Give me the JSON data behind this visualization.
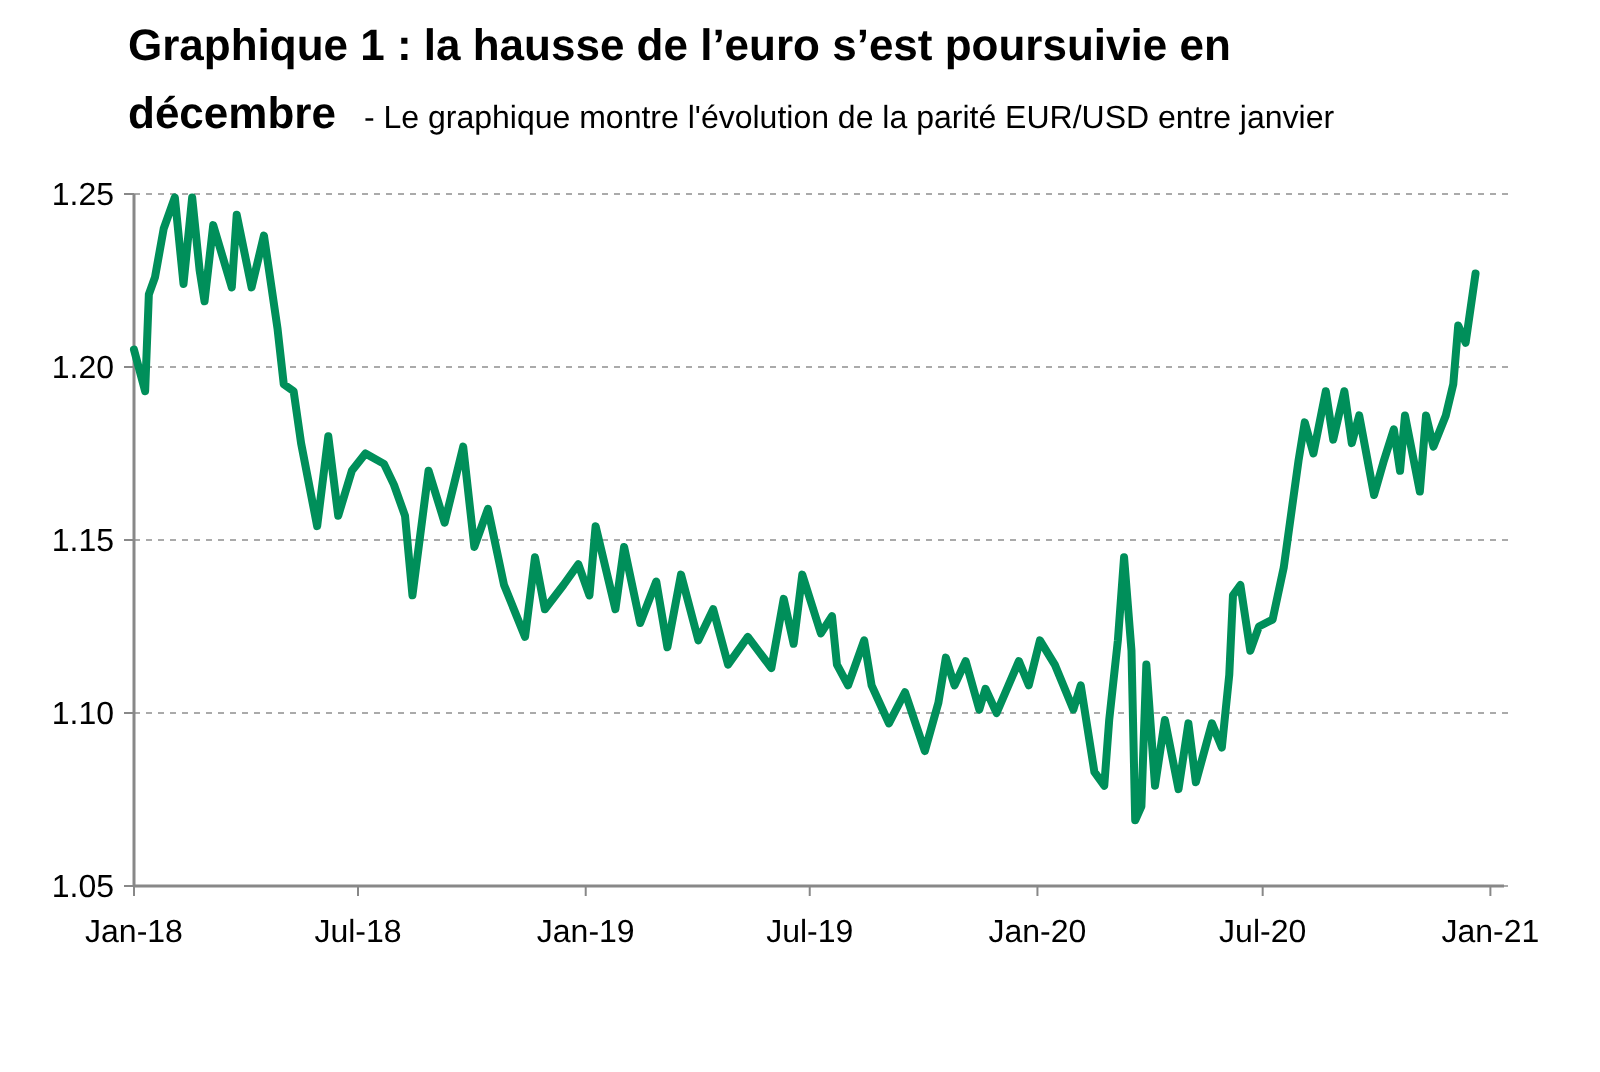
{
  "chart_data": {
    "type": "line",
    "title": "Graphique 1 : la hausse de l’euro s’est poursuivie en décembre",
    "subtitle": "- Le graphique montre l'évolution de la parité EUR/USD entre janvier",
    "x": [
      "2018-01-01",
      "2018-01-10",
      "2018-01-13",
      "2018-01-18",
      "2018-01-25",
      "2018-02-03",
      "2018-02-10",
      "2018-02-17",
      "2018-02-23",
      "2018-02-27",
      "2018-03-06",
      "2018-03-21",
      "2018-03-25",
      "2018-04-06",
      "2018-04-16",
      "2018-04-27",
      "2018-05-02",
      "2018-05-10",
      "2018-05-16",
      "2018-05-29",
      "2018-06-07",
      "2018-06-15",
      "2018-06-26",
      "2018-07-07",
      "2018-07-22",
      "2018-07-30",
      "2018-08-08",
      "2018-08-14",
      "2018-08-27",
      "2018-09-09",
      "2018-09-24",
      "2018-10-03",
      "2018-10-14",
      "2018-10-27",
      "2018-11-13",
      "2018-11-21",
      "2018-11-29",
      "2018-12-14",
      "2018-12-26",
      "2019-01-04",
      "2019-01-09",
      "2019-01-25",
      "2019-02-01",
      "2019-02-14",
      "2019-02-27",
      "2019-03-08",
      "2019-03-19",
      "2019-04-02",
      "2019-04-14",
      "2019-04-26",
      "2019-05-12",
      "2019-05-31",
      "2019-06-10",
      "2019-06-18",
      "2019-06-25",
      "2019-07-10",
      "2019-07-19",
      "2019-07-23",
      "2019-08-01",
      "2019-08-14",
      "2019-08-20",
      "2019-09-03",
      "2019-09-16",
      "2019-10-02",
      "2019-10-13",
      "2019-10-19",
      "2019-10-26",
      "2019-11-04",
      "2019-11-15",
      "2019-11-20",
      "2019-11-29",
      "2019-12-17",
      "2019-12-25",
      "2020-01-03",
      "2020-01-15",
      "2020-01-30",
      "2020-02-05",
      "2020-02-16",
      "2020-02-24",
      "2020-02-28",
      "2020-03-06",
      "2020-03-11",
      "2020-03-17",
      "2020-03-20",
      "2020-03-25",
      "2020-03-29",
      "2020-04-05",
      "2020-04-13",
      "2020-04-24",
      "2020-05-02",
      "2020-05-08",
      "2020-05-21",
      "2020-05-29",
      "2020-06-04",
      "2020-06-07",
      "2020-06-13",
      "2020-06-21",
      "2020-06-28",
      "2020-07-09",
      "2020-07-18",
      "2020-07-30",
      "2020-08-04",
      "2020-08-11",
      "2020-08-21",
      "2020-08-27",
      "2020-09-05",
      "2020-09-11",
      "2020-09-17",
      "2020-09-29",
      "2020-10-07",
      "2020-10-15",
      "2020-10-20",
      "2020-10-24",
      "2020-11-05",
      "2020-11-10",
      "2020-11-16",
      "2020-11-26",
      "2020-12-02",
      "2020-12-06",
      "2020-12-12",
      "2020-12-20"
    ],
    "series": [
      {
        "color": "#008f5a",
        "values": [
          1.205,
          1.193,
          1.221,
          1.226,
          1.24,
          1.249,
          1.224,
          1.249,
          1.228,
          1.219,
          1.241,
          1.223,
          1.244,
          1.223,
          1.238,
          1.211,
          1.195,
          1.193,
          1.178,
          1.154,
          1.18,
          1.157,
          1.17,
          1.175,
          1.172,
          1.166,
          1.157,
          1.134,
          1.17,
          1.155,
          1.177,
          1.148,
          1.159,
          1.137,
          1.122,
          1.145,
          1.13,
          1.137,
          1.143,
          1.134,
          1.154,
          1.13,
          1.148,
          1.126,
          1.138,
          1.119,
          1.14,
          1.121,
          1.13,
          1.114,
          1.122,
          1.113,
          1.133,
          1.12,
          1.14,
          1.123,
          1.128,
          1.114,
          1.108,
          1.121,
          1.108,
          1.097,
          1.106,
          1.089,
          1.103,
          1.116,
          1.108,
          1.115,
          1.101,
          1.107,
          1.1,
          1.115,
          1.108,
          1.121,
          1.114,
          1.101,
          1.108,
          1.083,
          1.079,
          1.098,
          1.121,
          1.145,
          1.118,
          1.069,
          1.073,
          1.114,
          1.079,
          1.098,
          1.078,
          1.097,
          1.08,
          1.097,
          1.09,
          1.111,
          1.134,
          1.137,
          1.118,
          1.125,
          1.127,
          1.142,
          1.173,
          1.184,
          1.175,
          1.193,
          1.179,
          1.193,
          1.178,
          1.186,
          1.163,
          1.173,
          1.182,
          1.17,
          1.186,
          1.164,
          1.186,
          1.177,
          1.186,
          1.195,
          1.212,
          1.207,
          1.227
        ]
      }
    ],
    "xlim": [
      "2018-01-01",
      "2021-01-12"
    ],
    "xticks": [
      {
        "value": "2018-01-01",
        "label": "Jan-18"
      },
      {
        "value": "2018-07-01",
        "label": "Jul-18"
      },
      {
        "value": "2019-01-01",
        "label": "Jan-19"
      },
      {
        "value": "2019-07-01",
        "label": "Jul-19"
      },
      {
        "value": "2020-01-01",
        "label": "Jan-20"
      },
      {
        "value": "2020-07-01",
        "label": "Jul-20"
      },
      {
        "value": "2021-01-01",
        "label": "Jan-21"
      }
    ],
    "ylim": [
      1.05,
      1.25
    ],
    "yticks": [
      {
        "value": 1.05,
        "label": "1.05"
      },
      {
        "value": 1.1,
        "label": "1.10"
      },
      {
        "value": 1.15,
        "label": "1.15"
      },
      {
        "value": 1.2,
        "label": "1.20"
      },
      {
        "value": 1.25,
        "label": "1.25"
      }
    ],
    "grid": "y",
    "marker": "none",
    "line_style": "solid"
  }
}
